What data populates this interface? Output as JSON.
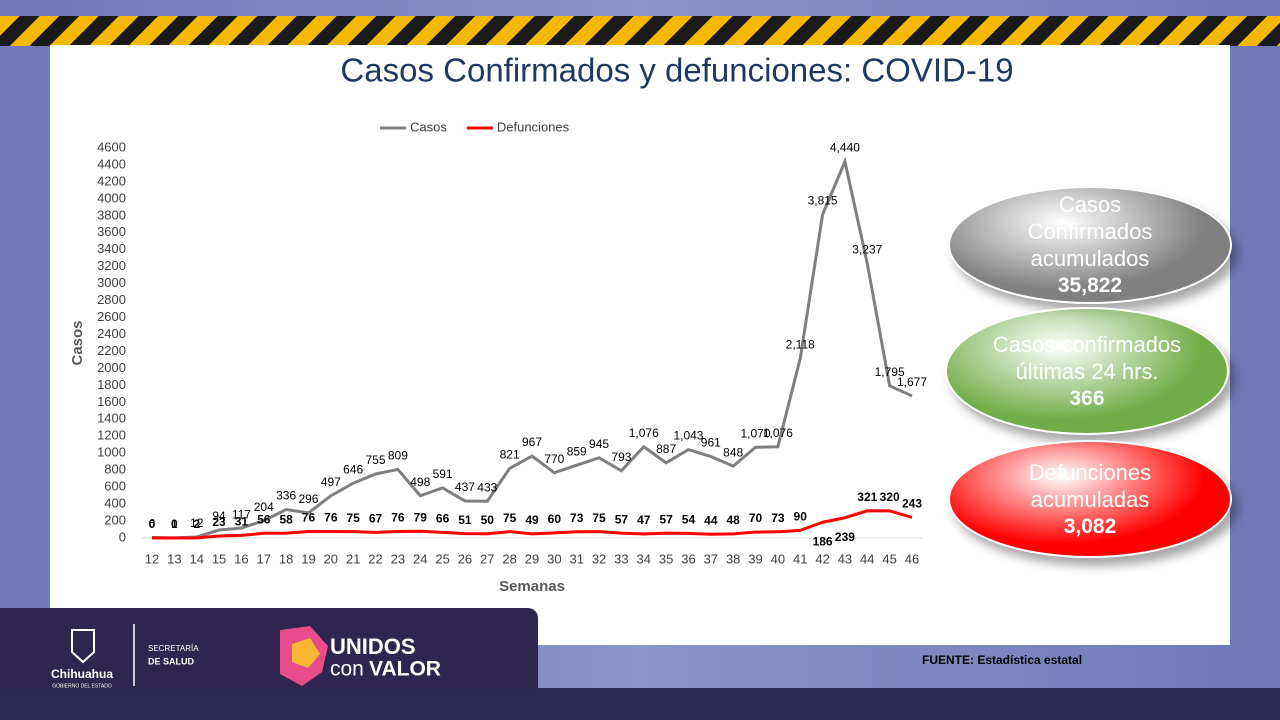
{
  "chart_data": {
    "type": "line",
    "title": "Casos Confirmados  y defunciones: COVID-19",
    "x_label": "Semanas",
    "y_label": "Casos",
    "categories": [
      "12",
      "13",
      "14",
      "15",
      "16",
      "17",
      "18",
      "19",
      "20",
      "21",
      "22",
      "23",
      "24",
      "25",
      "26",
      "27",
      "28",
      "29",
      "30",
      "31",
      "32",
      "33",
      "34",
      "35",
      "36",
      "37",
      "38",
      "39",
      "40",
      "41",
      "42",
      "43",
      "44",
      "45",
      "46"
    ],
    "series": [
      {
        "name": "Casos",
        "color": "#7f7f7f",
        "values": [
          6,
          1,
          12,
          94,
          117,
          204,
          336,
          296,
          497,
          646,
          755,
          809,
          498,
          591,
          437,
          433,
          821,
          967,
          770,
          859,
          945,
          793,
          1076,
          887,
          1043,
          961,
          848,
          1070,
          1076,
          2118,
          3815,
          4440,
          3237,
          1795,
          1677
        ],
        "value_labels": [
          "6",
          "1",
          "12",
          "94",
          "117",
          "204",
          "336",
          "296",
          "497",
          "646",
          "755",
          "809",
          "498",
          "591",
          "437",
          "433",
          "821",
          "967",
          "770",
          "859",
          "945",
          "793",
          "1,076",
          "887",
          "1,043",
          "961",
          "848",
          "1,070",
          "1,076",
          "2,118",
          "3,815",
          "4,440",
          "3,237",
          "1,795",
          "1,677"
        ]
      },
      {
        "name": "Defunciones",
        "color": "#ff0000",
        "values": [
          0,
          0,
          2,
          23,
          31,
          56,
          58,
          76,
          76,
          75,
          67,
          76,
          79,
          66,
          51,
          50,
          75,
          49,
          60,
          73,
          75,
          57,
          47,
          57,
          54,
          44,
          48,
          70,
          73,
          90,
          186,
          239,
          321,
          320,
          243
        ]
      }
    ],
    "ylim": [
      0,
      4600
    ],
    "yticks": [
      0,
      200,
      400,
      600,
      800,
      1000,
      1200,
      1400,
      1600,
      1800,
      2000,
      2200,
      2400,
      2600,
      2800,
      3000,
      3200,
      3400,
      3600,
      3800,
      4000,
      4200,
      4400,
      4600
    ],
    "grid": false,
    "legend": "top"
  },
  "summary": [
    {
      "label": "Casos Confirmados acumulados",
      "value": "35,822",
      "color": "#808080"
    },
    {
      "label": "Casos confirmados últimas 24 hrs.",
      "value": "366",
      "color": "#70ad47"
    },
    {
      "label": "Defunciones acumuladas",
      "value": "3,082",
      "color": "#ff0000"
    }
  ],
  "footer": {
    "source": "FUENTE: Estadística estatal",
    "org": "Chihuahua",
    "org_sub": "GOBIERNO DEL ESTADO",
    "dept_1": "SECRETARÍA",
    "dept_2": "DE SALUD",
    "slogan_1": "UNIDOS",
    "slogan_2": "con",
    "slogan_3": "VALOR"
  }
}
